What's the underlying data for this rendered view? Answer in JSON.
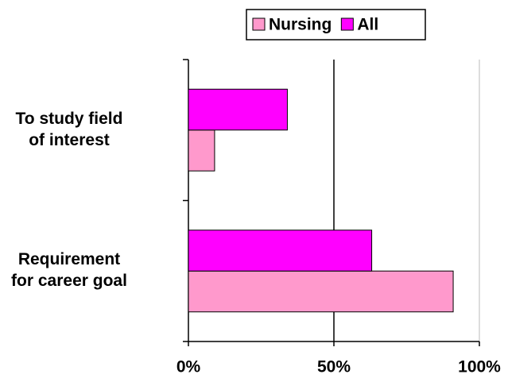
{
  "chart_data": {
    "type": "bar",
    "orientation": "horizontal",
    "categories": [
      "To study field of interest",
      "Requirement for career goal"
    ],
    "series": [
      {
        "name": "Nursing",
        "color": "#ff99cc",
        "values": [
          9,
          91
        ]
      },
      {
        "name": "All",
        "color": "#ff00ff",
        "values": [
          34,
          63
        ]
      }
    ],
    "xlim": [
      0,
      100
    ],
    "xticks": [
      {
        "value": 0,
        "label": "0%"
      },
      {
        "value": 50,
        "label": "50%"
      },
      {
        "value": 100,
        "label": "100%"
      }
    ],
    "grid": true,
    "legend": "top"
  }
}
